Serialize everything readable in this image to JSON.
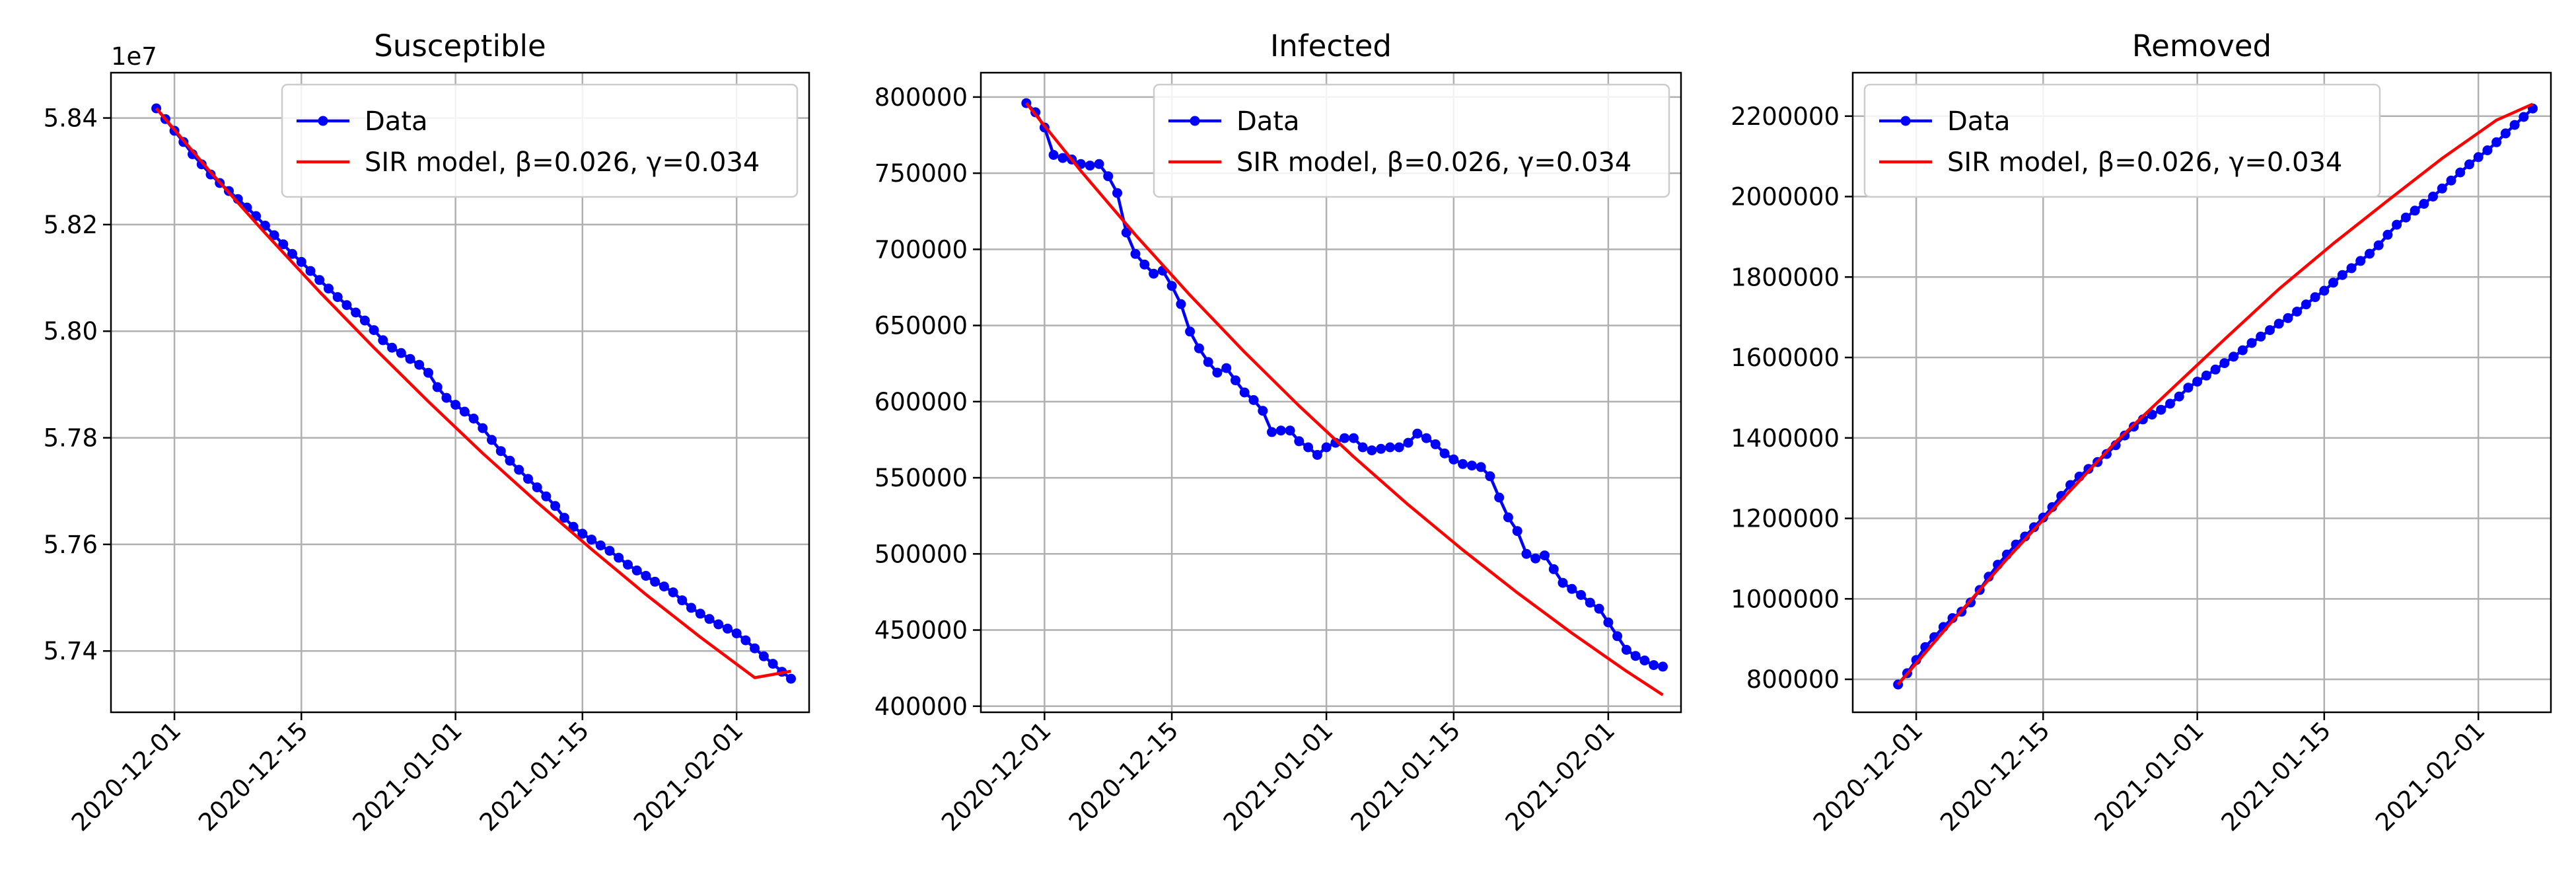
{
  "colors": {
    "data_series": "#0000ff",
    "model_series": "#ff0000",
    "grid": "#b0b0b0"
  },
  "chart_data": [
    {
      "type": "line",
      "title": "Susceptible",
      "xlabel": "",
      "ylabel": "",
      "y_offset_label": "1e7",
      "grid": true,
      "legend_position": "upper-right",
      "x_axis_type": "date",
      "xlim": [
        "2020-11-24",
        "2021-02-09"
      ],
      "ylim": [
        5.7285,
        5.8485
      ],
      "y_ticks": [
        5.74,
        5.76,
        5.78,
        5.8,
        5.82,
        5.84
      ],
      "y_tick_labels": [
        "5.74",
        "5.76",
        "5.78",
        "5.80",
        "5.82",
        "5.84"
      ],
      "x_ticks": [
        "2020-12-01",
        "2020-12-15",
        "2021-01-01",
        "2021-01-15",
        "2021-02-01"
      ],
      "x_tick_labels": [
        "2020-12-01",
        "2020-12-15",
        "2021-01-01",
        "2021-01-15",
        "2021-02-01"
      ],
      "series": [
        {
          "name": "Data",
          "style": "line-marker",
          "x": [
            "2020-11-29",
            "2020-11-30",
            "2020-12-01",
            "2020-12-02",
            "2020-12-03",
            "2020-12-04",
            "2020-12-05",
            "2020-12-06",
            "2020-12-07",
            "2020-12-08",
            "2020-12-09",
            "2020-12-10",
            "2020-12-11",
            "2020-12-12",
            "2020-12-13",
            "2020-12-14",
            "2020-12-15",
            "2020-12-16",
            "2020-12-17",
            "2020-12-18",
            "2020-12-19",
            "2020-12-20",
            "2020-12-21",
            "2020-12-22",
            "2020-12-23",
            "2020-12-24",
            "2020-12-25",
            "2020-12-26",
            "2020-12-27",
            "2020-12-28",
            "2020-12-29",
            "2020-12-30",
            "2020-12-31",
            "2021-01-01",
            "2021-01-02",
            "2021-01-03",
            "2021-01-04",
            "2021-01-05",
            "2021-01-06",
            "2021-01-07",
            "2021-01-08",
            "2021-01-09",
            "2021-01-10",
            "2021-01-11",
            "2021-01-12",
            "2021-01-13",
            "2021-01-14",
            "2021-01-15",
            "2021-01-16",
            "2021-01-17",
            "2021-01-18",
            "2021-01-19",
            "2021-01-20",
            "2021-01-21",
            "2021-01-22",
            "2021-01-23",
            "2021-01-24",
            "2021-01-25",
            "2021-01-26",
            "2021-01-27",
            "2021-01-28",
            "2021-01-29",
            "2021-01-30",
            "2021-01-31",
            "2021-02-01",
            "2021-02-02",
            "2021-02-03",
            "2021-02-04",
            "2021-02-05",
            "2021-02-06",
            "2021-02-07"
          ],
          "values": [
            5.8418,
            5.8398,
            5.8376,
            5.8355,
            5.8332,
            5.8313,
            5.8294,
            5.8278,
            5.8263,
            5.8248,
            5.8232,
            5.8216,
            5.8198,
            5.818,
            5.8163,
            5.8145,
            5.813,
            5.8113,
            5.8096,
            5.808,
            5.8064,
            5.8049,
            5.8035,
            5.802,
            5.8002,
            5.7983,
            5.7969,
            5.7959,
            5.7948,
            5.7937,
            5.7922,
            5.7895,
            5.7875,
            5.7862,
            5.7849,
            5.7836,
            5.7818,
            5.7796,
            5.7775,
            5.7757,
            5.774,
            5.7723,
            5.7707,
            5.769,
            5.7672,
            5.765,
            5.7633,
            5.762,
            5.7609,
            5.7598,
            5.7588,
            5.7575,
            5.7562,
            5.7551,
            5.7541,
            5.753,
            5.7521,
            5.751,
            5.7495,
            5.7481,
            5.747,
            5.746,
            5.745,
            5.7442,
            5.7433,
            5.742,
            5.7405,
            5.739,
            5.7376,
            5.7361,
            5.7348
          ]
        },
        {
          "name": "SIR model, β=0.026, γ=0.034",
          "style": "line",
          "x": [
            "2020-11-29",
            "2020-12-05",
            "2020-12-11",
            "2020-12-17",
            "2020-12-23",
            "2020-12-29",
            "2021-01-04",
            "2021-01-10",
            "2021-01-16",
            "2021-01-22",
            "2021-01-28",
            "2021-02-03",
            "2021-02-07"
          ],
          "values": [
            5.8418,
            5.8298,
            5.8184,
            5.8074,
            5.7969,
            5.7868,
            5.7771,
            5.7679,
            5.7591,
            5.7506,
            5.7426,
            5.735,
            5.7362
          ]
        }
      ]
    },
    {
      "type": "line",
      "title": "Infected",
      "xlabel": "",
      "ylabel": "",
      "grid": true,
      "legend_position": "upper-right",
      "x_axis_type": "date",
      "xlim": [
        "2020-11-24",
        "2021-02-09"
      ],
      "ylim": [
        396000,
        816000
      ],
      "y_ticks": [
        400000,
        450000,
        500000,
        550000,
        600000,
        650000,
        700000,
        750000,
        800000
      ],
      "y_tick_labels": [
        "400000",
        "450000",
        "500000",
        "550000",
        "600000",
        "650000",
        "700000",
        "750000",
        "800000"
      ],
      "x_ticks": [
        "2020-12-01",
        "2020-12-15",
        "2021-01-01",
        "2021-01-15",
        "2021-02-01"
      ],
      "x_tick_labels": [
        "2020-12-01",
        "2020-12-15",
        "2021-01-01",
        "2021-01-15",
        "2021-02-01"
      ],
      "series": [
        {
          "name": "Data",
          "style": "line-marker",
          "x": [
            "2020-11-29",
            "2020-11-30",
            "2020-12-01",
            "2020-12-02",
            "2020-12-03",
            "2020-12-04",
            "2020-12-05",
            "2020-12-06",
            "2020-12-07",
            "2020-12-08",
            "2020-12-09",
            "2020-12-10",
            "2020-12-11",
            "2020-12-12",
            "2020-12-13",
            "2020-12-14",
            "2020-12-15",
            "2020-12-16",
            "2020-12-17",
            "2020-12-18",
            "2020-12-19",
            "2020-12-20",
            "2020-12-21",
            "2020-12-22",
            "2020-12-23",
            "2020-12-24",
            "2020-12-25",
            "2020-12-26",
            "2020-12-27",
            "2020-12-28",
            "2020-12-29",
            "2020-12-30",
            "2020-12-31",
            "2021-01-01",
            "2021-01-02",
            "2021-01-03",
            "2021-01-04",
            "2021-01-05",
            "2021-01-06",
            "2021-01-07",
            "2021-01-08",
            "2021-01-09",
            "2021-01-10",
            "2021-01-11",
            "2021-01-12",
            "2021-01-13",
            "2021-01-14",
            "2021-01-15",
            "2021-01-16",
            "2021-01-17",
            "2021-01-18",
            "2021-01-19",
            "2021-01-20",
            "2021-01-21",
            "2021-01-22",
            "2021-01-23",
            "2021-01-24",
            "2021-01-25",
            "2021-01-26",
            "2021-01-27",
            "2021-01-28",
            "2021-01-29",
            "2021-01-30",
            "2021-01-31",
            "2021-02-01",
            "2021-02-02",
            "2021-02-03",
            "2021-02-04",
            "2021-02-05",
            "2021-02-06",
            "2021-02-07"
          ],
          "values": [
            796000,
            790000,
            780000,
            762000,
            760000,
            759000,
            756000,
            755000,
            756000,
            748000,
            737000,
            711000,
            697000,
            690000,
            684000,
            686000,
            676000,
            664000,
            646000,
            635000,
            626000,
            619000,
            622000,
            614000,
            606000,
            601000,
            594000,
            580000,
            581000,
            581000,
            574000,
            570000,
            565000,
            570000,
            573000,
            576000,
            576000,
            570000,
            568000,
            569000,
            570000,
            570000,
            573000,
            579000,
            576000,
            572000,
            566000,
            562000,
            559000,
            558000,
            557000,
            551000,
            537000,
            524000,
            515000,
            500000,
            497000,
            499000,
            490000,
            481000,
            477000,
            473000,
            468000,
            464000,
            455000,
            446000,
            437000,
            433000,
            430000,
            427000,
            426000
          ]
        },
        {
          "name": "SIR model, β=0.026, γ=0.034",
          "style": "line",
          "x": [
            "2020-11-29",
            "2020-12-05",
            "2020-12-11",
            "2020-12-17",
            "2020-12-23",
            "2020-12-29",
            "2021-01-04",
            "2021-01-10",
            "2021-01-16",
            "2021-01-22",
            "2021-01-28",
            "2021-02-03",
            "2021-02-07"
          ],
          "values": [
            796000,
            751500,
            709500,
            669900,
            632500,
            597200,
            563800,
            532300,
            502600,
            474500,
            448000,
            423000,
            407400
          ]
        }
      ]
    },
    {
      "type": "line",
      "title": "Removed",
      "xlabel": "",
      "ylabel": "",
      "grid": true,
      "legend_position": "upper-left",
      "x_axis_type": "date",
      "xlim": [
        "2020-11-24",
        "2021-02-09"
      ],
      "ylim": [
        718000,
        2308000
      ],
      "y_ticks": [
        800000,
        1000000,
        1200000,
        1400000,
        1600000,
        1800000,
        2000000,
        2200000
      ],
      "y_tick_labels": [
        "800000",
        "1000000",
        "1200000",
        "1400000",
        "1600000",
        "1800000",
        "2000000",
        "2200000"
      ],
      "x_ticks": [
        "2020-12-01",
        "2020-12-15",
        "2021-01-01",
        "2021-01-15",
        "2021-02-01"
      ],
      "x_tick_labels": [
        "2020-12-01",
        "2020-12-15",
        "2021-01-01",
        "2021-01-15",
        "2021-02-01"
      ],
      "series": [
        {
          "name": "Data",
          "style": "line-marker",
          "x": [
            "2020-11-29",
            "2020-11-30",
            "2020-12-01",
            "2020-12-02",
            "2020-12-03",
            "2020-12-04",
            "2020-12-05",
            "2020-12-06",
            "2020-12-07",
            "2020-12-08",
            "2020-12-09",
            "2020-12-10",
            "2020-12-11",
            "2020-12-12",
            "2020-12-13",
            "2020-12-14",
            "2020-12-15",
            "2020-12-16",
            "2020-12-17",
            "2020-12-18",
            "2020-12-19",
            "2020-12-20",
            "2020-12-21",
            "2020-12-22",
            "2020-12-23",
            "2020-12-24",
            "2020-12-25",
            "2020-12-26",
            "2020-12-27",
            "2020-12-28",
            "2020-12-29",
            "2020-12-30",
            "2020-12-31",
            "2021-01-01",
            "2021-01-02",
            "2021-01-03",
            "2021-01-04",
            "2021-01-05",
            "2021-01-06",
            "2021-01-07",
            "2021-01-08",
            "2021-01-09",
            "2021-01-10",
            "2021-01-11",
            "2021-01-12",
            "2021-01-13",
            "2021-01-14",
            "2021-01-15",
            "2021-01-16",
            "2021-01-17",
            "2021-01-18",
            "2021-01-19",
            "2021-01-20",
            "2021-01-21",
            "2021-01-22",
            "2021-01-23",
            "2021-01-24",
            "2021-01-25",
            "2021-01-26",
            "2021-01-27",
            "2021-01-28",
            "2021-01-29",
            "2021-01-30",
            "2021-01-31",
            "2021-02-01",
            "2021-02-02",
            "2021-02-03",
            "2021-02-04",
            "2021-02-05",
            "2021-02-06",
            "2021-02-07"
          ],
          "values": [
            787000,
            815000,
            848000,
            880000,
            905000,
            930000,
            952000,
            968000,
            991000,
            1022000,
            1055000,
            1085000,
            1110000,
            1135000,
            1155000,
            1178000,
            1202000,
            1228000,
            1256000,
            1283000,
            1304000,
            1323000,
            1340000,
            1360000,
            1382000,
            1406000,
            1428000,
            1446000,
            1458000,
            1470000,
            1485000,
            1503000,
            1525000,
            1540000,
            1555000,
            1570000,
            1586000,
            1602000,
            1618000,
            1636000,
            1652000,
            1668000,
            1684000,
            1698000,
            1714000,
            1732000,
            1750000,
            1766000,
            1786000,
            1805000,
            1822000,
            1840000,
            1858000,
            1879000,
            1905000,
            1930000,
            1948000,
            1965000,
            1982000,
            2000000,
            2020000,
            2040000,
            2060000,
            2080000,
            2098000,
            2115000,
            2135000,
            2157000,
            2178000,
            2198000,
            2219000
          ]
        },
        {
          "name": "SIR model, β=0.026, γ=0.034",
          "style": "line",
          "x": [
            "2020-11-29",
            "2020-12-05",
            "2020-12-11",
            "2020-12-17",
            "2020-12-23",
            "2020-12-29",
            "2021-01-04",
            "2021-01-10",
            "2021-01-16",
            "2021-01-22",
            "2021-01-28",
            "2021-02-03",
            "2021-02-07"
          ],
          "values": [
            787000,
            945000,
            1099000,
            1245000,
            1390000,
            1518000,
            1645000,
            1770000,
            1883000,
            1990000,
            2095000,
            2190000,
            2230000
          ]
        }
      ]
    }
  ]
}
